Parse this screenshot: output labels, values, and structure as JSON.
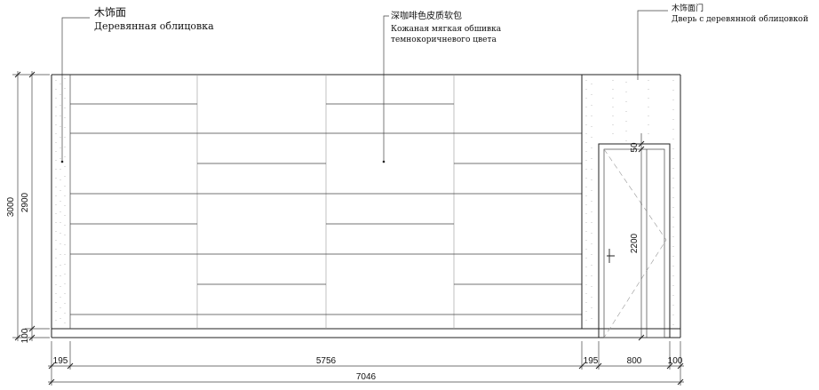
{
  "annotations": {
    "wood_panel": {
      "zh": "木饰面",
      "ru": "Деревянная облицовка"
    },
    "leather": {
      "zh": "深咖啡色皮质软包",
      "ru1": "Кожаная мягкая обшивка",
      "ru2": "темнокоричневого цвета"
    },
    "wood_door": {
      "zh": "木饰面门",
      "ru": "Дверь с деревянной облицовкой"
    }
  },
  "dimensions": {
    "height_total": "3000",
    "height_upper": "2900",
    "height_base": "100",
    "door_top_gap": "50",
    "door_height": "2200",
    "left_margin": "195",
    "main_width": "5756",
    "right_margin": "195",
    "door_width": "800",
    "door_side": "100",
    "total_width": "7046"
  }
}
